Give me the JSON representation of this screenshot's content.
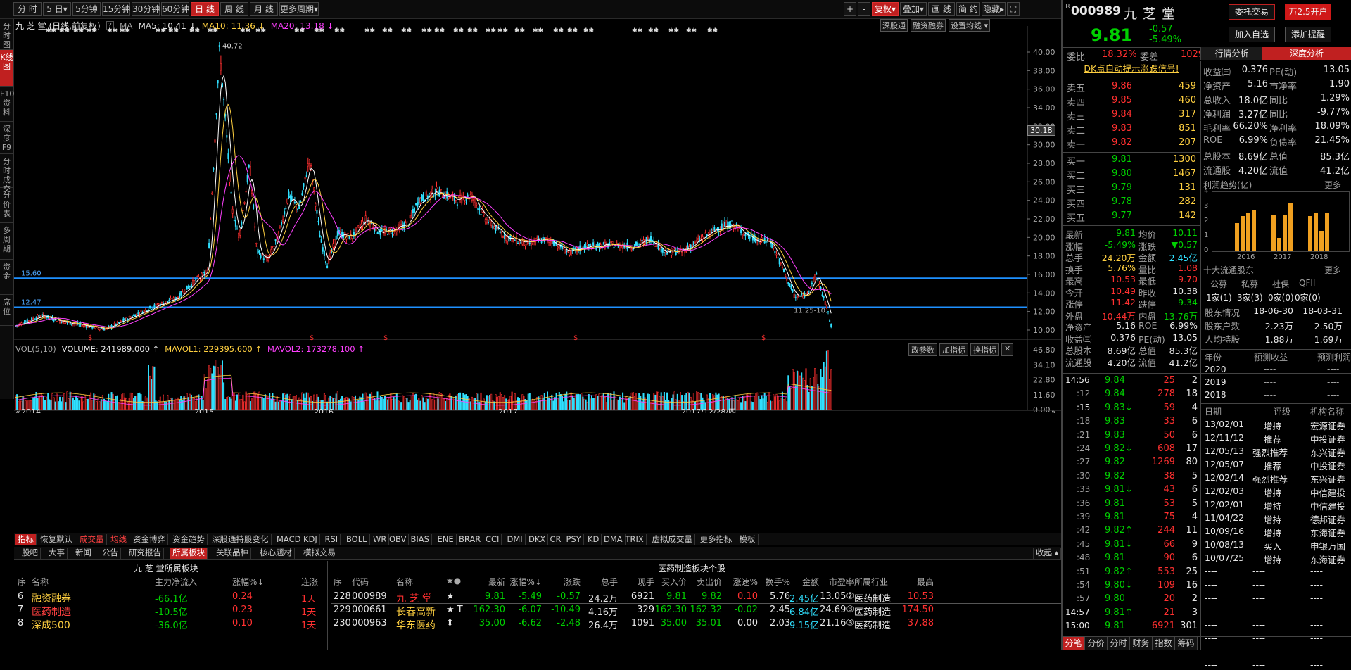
{
  "toolbar": {
    "periods": [
      "分 时",
      "5 日▾",
      "5分钟",
      "15分钟",
      "30分钟",
      "60分钟",
      "日 线",
      "周 线",
      "月 线",
      "更多周期▾"
    ],
    "right_buttons": [
      "+",
      "-",
      "复权▾",
      "叠加▾",
      "画 线",
      "简 约",
      "隐藏▸",
      "⛶"
    ]
  },
  "left_tabs": [
    "分时图",
    "K线图",
    "F10资料",
    "深度F9",
    "分时成交",
    "分价表",
    "多周期",
    "资金",
    "席位"
  ],
  "chart_header": {
    "title": "九 芝 堂 (日线,前复权)",
    "q": "?",
    "ma_label": "MA",
    "ma5": "MA5: 10.41 ↓",
    "ma10": "MA10: 11.36 ↓",
    "ma20": "MA20: 13.18 ↓",
    "btn1": "深股通",
    "btn2": "融资融券",
    "btn3": "设置均线 ▾"
  },
  "price_axis": [
    "40.00",
    "38.00",
    "36.00",
    "34.00",
    "32.00",
    "30.00",
    "28.00",
    "26.00",
    "24.00",
    "22.00",
    "20.00",
    "18.00",
    "16.00",
    "14.00",
    "12.00",
    "10.00"
  ],
  "price_marker": "30.18",
  "lines": {
    "upper": "15.60",
    "lower": "12.47",
    "peak": "40.72",
    "low_label": "11.25-10."
  },
  "vol_header": {
    "name": "VOL(5,10)",
    "volume": "VOLUME: 241989.000 ↑",
    "mavol1": "MAVOL1: 229395.600 ↑",
    "mavol2": "MAVOL2: 173278.100 ↑",
    "btn1": "改参数",
    "btn2": "加指标",
    "btn3": "换指标",
    "close": "✕"
  },
  "vol_axis": [
    "46.80",
    "34.10",
    "22.80",
    "11.60",
    "0.00"
  ],
  "time_axis": {
    "left": "«",
    "labels": [
      "2014",
      "2015",
      "2016",
      "2017",
      "2017/12/28/四"
    ],
    "right": "»"
  },
  "indicators": [
    "指标",
    "恢复默认",
    "成交量",
    "均线",
    "资金博弈",
    "资金趋势",
    "深股通持股变化",
    "MACD",
    "KDJ",
    "RSI",
    "BOLL",
    "WR",
    "OBV",
    "BIAS",
    "ENE",
    "BRAR",
    "CCI",
    "DMI",
    "DKX",
    "CR",
    "PSY",
    "KD",
    "DMA",
    "TRIX",
    "虚拟成交量",
    "更多指标",
    "模板"
  ],
  "bottom_tabs": [
    "股吧",
    "大事",
    "新闻",
    "公告",
    "研究报告",
    "所属板块",
    "关联品种",
    "核心题材",
    "模拟交易"
  ],
  "bottom_tabs_right": "收起 ▴",
  "sector_panel": {
    "title": "九 芝 堂所属板块",
    "headers": [
      "序",
      "名称",
      "主力净流入",
      "涨幅%↓",
      "连涨"
    ],
    "rows": [
      [
        "6",
        "融资融券",
        "-66.1亿",
        "0.24",
        "1天"
      ],
      [
        "7",
        "医药制造",
        "-10.5亿",
        "0.23",
        "1天"
      ],
      [
        "8",
        "深成500",
        "-36.0亿",
        "0.10",
        "1天"
      ]
    ]
  },
  "stock_table": {
    "title": "医药制造板块个股",
    "headers": [
      "序",
      "代码",
      "名称",
      "★●",
      "最新",
      "涨幅%↓",
      "涨跌",
      "总手",
      "现手",
      "买入价",
      "卖出价",
      "涨速%",
      "换手%",
      "金额",
      "市盈率",
      "所属行业",
      "最高"
    ],
    "rows": [
      [
        "228",
        "000989",
        "九 芝 堂",
        "★",
        "9.81",
        "-5.49",
        "-0.57",
        "24.2万",
        "6921",
        "9.81",
        "9.82",
        "0.10",
        "5.76",
        "2.45亿",
        "13.05②",
        "医药制造",
        "10.53"
      ],
      [
        "229",
        "000661",
        "长春高新",
        "★ T",
        "162.30",
        "-6.07",
        "-10.49",
        "4.16万",
        "329",
        "162.30",
        "162.32",
        "-0.02",
        "2.45",
        "6.84亿",
        "24.69③",
        "医药制造",
        "174.50"
      ],
      [
        "230",
        "000963",
        "华东医药",
        "⬍",
        "35.00",
        "-6.62",
        "-2.48",
        "26.4万",
        "1091",
        "35.00",
        "35.01",
        "0.00",
        "2.03",
        "9.15亿",
        "21.16③",
        "医药制造",
        "37.88"
      ]
    ]
  },
  "quote": {
    "prefix": "R",
    "code": "000989",
    "name": "九 芝 堂",
    "price": "9.81",
    "change": "-0.57",
    "pct": "-5.49%",
    "btn_trade": "委托交易",
    "btn_open": "万2.5开户",
    "btn_watch": "加入自选",
    "btn_alert": "添加提醒",
    "wb_label": "委比",
    "wb": "18.32%",
    "wc_label": "委差",
    "wc": "1029",
    "tab1": "行情分析",
    "tab2": "深度分析",
    "signal": "DK点自动提示涨跌信号!"
  },
  "asks": [
    [
      "卖五",
      "9.86",
      "459"
    ],
    [
      "卖四",
      "9.85",
      "460"
    ],
    [
      "卖三",
      "9.84",
      "317"
    ],
    [
      "卖二",
      "9.83",
      "851"
    ],
    [
      "卖一",
      "9.82",
      "207"
    ]
  ],
  "bids": [
    [
      "买一",
      "9.81",
      "1300"
    ],
    [
      "买二",
      "9.80",
      "1467"
    ],
    [
      "买三",
      "9.79",
      "131"
    ],
    [
      "买四",
      "9.78",
      "282"
    ],
    [
      "买五",
      "9.77",
      "142"
    ]
  ],
  "stats": [
    [
      "最新",
      "9.81",
      "均价",
      "10.11"
    ],
    [
      "涨幅",
      "-5.49%",
      "涨跌",
      "▼0.57"
    ],
    [
      "总手",
      "24.20万",
      "金额",
      "2.45亿"
    ],
    [
      "换手",
      "5.76%",
      "量比",
      "1.08"
    ],
    [
      "最高",
      "10.53",
      "最低",
      "9.70"
    ],
    [
      "今开",
      "10.49",
      "昨收",
      "10.38"
    ],
    [
      "涨停",
      "11.42",
      "跌停",
      "9.34"
    ],
    [
      "外盘",
      "10.44万",
      "内盘",
      "13.76万"
    ],
    [
      "净资产",
      "5.16",
      "ROE",
      "6.99%"
    ],
    [
      "收益㈢",
      "0.376",
      "PE(动)",
      "13.05"
    ],
    [
      "总股本",
      "8.69亿",
      "总值",
      "85.3亿"
    ],
    [
      "流通股",
      "4.20亿",
      "流值",
      "41.2亿"
    ]
  ],
  "ticks": [
    [
      "14:56",
      "9.84",
      "25",
      "2"
    ],
    [
      ":12",
      "9.84",
      "278",
      "18"
    ],
    [
      ":15",
      "9.83↓",
      "59",
      "4"
    ],
    [
      ":18",
      "9.83",
      "33",
      "6"
    ],
    [
      ":21",
      "9.83",
      "50",
      "6"
    ],
    [
      ":24",
      "9.82↓",
      "608",
      "17"
    ],
    [
      ":27",
      "9.82",
      "1269",
      "80"
    ],
    [
      ":30",
      "9.82",
      "38",
      "5"
    ],
    [
      ":33",
      "9.81↓",
      "43",
      "6"
    ],
    [
      ":36",
      "9.81",
      "53",
      "5"
    ],
    [
      ":39",
      "9.81",
      "75",
      "4"
    ],
    [
      ":42",
      "9.82↑",
      "244",
      "11"
    ],
    [
      ":45",
      "9.81↓",
      "66",
      "9"
    ],
    [
      ":48",
      "9.81",
      "90",
      "6"
    ],
    [
      ":51",
      "9.82↑",
      "553",
      "25"
    ],
    [
      ":54",
      "9.80↓",
      "109",
      "16"
    ],
    [
      ":57",
      "9.80",
      "20",
      "2"
    ],
    [
      "14:57",
      "9.81↑",
      "21",
      "3"
    ],
    [
      "15:00",
      "9.81",
      "6921",
      "301"
    ]
  ],
  "fund": [
    [
      "收益㈢",
      "0.376",
      "PE(动)",
      "13.05"
    ],
    [
      "净资产",
      "5.16",
      "市净率",
      "1.90"
    ],
    [
      "总收入",
      "18.0亿",
      "同比",
      "1.29%"
    ],
    [
      "净利润",
      "3.27亿",
      "同比",
      "-9.77%"
    ],
    [
      "毛利率",
      "66.20%",
      "净利率",
      "18.09%"
    ],
    [
      "ROE",
      "6.99%",
      "负债率",
      "21.45%"
    ],
    [
      "总股本",
      "8.69亿",
      "总值",
      "85.3亿"
    ],
    [
      "流通股",
      "4.20亿",
      "流值",
      "41.2亿"
    ]
  ],
  "profit": {
    "title": "利润趋势(亿)",
    "more": "更多",
    "axis": [
      "4",
      "3",
      "2",
      "1",
      "0"
    ],
    "years": [
      "2016",
      "2017",
      "2018"
    ],
    "bars": [
      1.9,
      2.4,
      2.6,
      2.8,
      2.5,
      0.9,
      2.5,
      3.3,
      2.4,
      2.6,
      1.4,
      2.6
    ]
  },
  "holders": {
    "title": "十大流通股东",
    "more": "更多",
    "heads": [
      "公募",
      "私募",
      "社保",
      "QFII"
    ],
    "vals": [
      "1家(1)",
      "3家(3)",
      "0家(0)",
      "0家(0)"
    ],
    "rows": [
      [
        "股东情况",
        "18-06-30",
        "18-03-31"
      ],
      [
        "股东户数",
        "2.23万",
        "2.50万"
      ],
      [
        "人均持股",
        "1.88万",
        "1.69万"
      ]
    ]
  },
  "forecast": {
    "heads": [
      "年份",
      "预测收益",
      "预测利润"
    ],
    "rows": [
      [
        "2020",
        "----",
        "----"
      ],
      [
        "2019",
        "----",
        "----"
      ],
      [
        "2018",
        "----",
        "----"
      ]
    ]
  },
  "rating": {
    "heads": [
      "日期",
      "评级",
      "机构名称"
    ],
    "rows": [
      [
        "13/02/01",
        "增持",
        "宏源证券"
      ],
      [
        "12/11/12",
        "推荐",
        "中投证券"
      ],
      [
        "12/05/13",
        "强烈推荐",
        "东兴证券"
      ],
      [
        "12/05/07",
        "推荐",
        "中投证券"
      ],
      [
        "12/02/14",
        "强烈推荐",
        "东兴证券"
      ],
      [
        "12/02/03",
        "增持",
        "中信建投"
      ],
      [
        "12/02/01",
        "增持",
        "中信建投"
      ],
      [
        "11/04/22",
        "增持",
        "德邦证券"
      ],
      [
        "10/09/16",
        "增持",
        "东海证券"
      ],
      [
        "10/08/13",
        "买入",
        "申银万国"
      ],
      [
        "10/07/25",
        "增持",
        "东海证券"
      ],
      [
        "----",
        "----",
        "----"
      ],
      [
        "----",
        "----",
        "----"
      ],
      [
        "----",
        "----",
        "----"
      ],
      [
        "----",
        "----",
        "----"
      ],
      [
        "----",
        "----",
        "----"
      ],
      [
        "----",
        "----",
        "----"
      ],
      [
        "----",
        "----",
        "----"
      ],
      [
        "----",
        "----",
        "----"
      ]
    ]
  },
  "bottom_right_tabs": [
    "分笔",
    "分价",
    "分时",
    "财务",
    "指数",
    "筹码"
  ],
  "colors": {
    "up": "#ff3030",
    "down": "#00d000",
    "ma5": "#ffffff",
    "ma10": "#ffd040",
    "ma20": "#ff40ff",
    "support": "#1e90ff",
    "accent": "#c02020"
  }
}
